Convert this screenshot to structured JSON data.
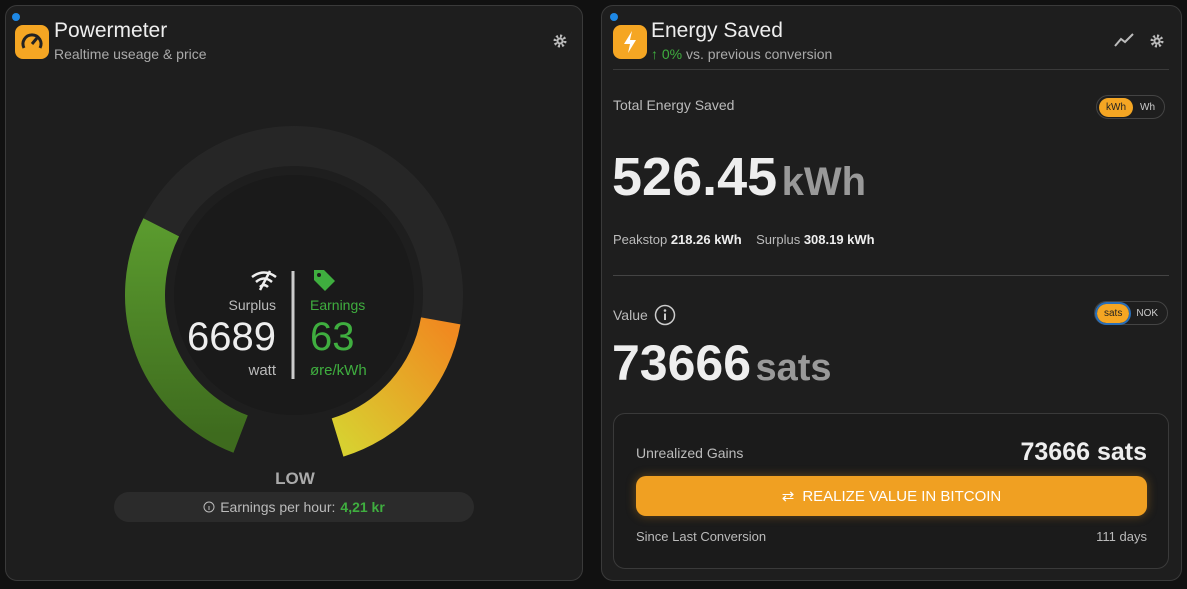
{
  "powermeter": {
    "title": "Powermeter",
    "subtitle": "Realtime useage & price",
    "surplus_label": "Surplus",
    "surplus_value": "6689",
    "surplus_unit": "watt",
    "earnings_label": "Earnings",
    "earnings_value": "63",
    "earnings_unit": "øre/kWh",
    "level": "LOW",
    "earnings_per_hour_label": "Earnings per hour:",
    "earnings_per_hour_value": "4,21 kr"
  },
  "energy_saved": {
    "title": "Energy Saved",
    "change": "0%",
    "change_label": "vs. previous conversion",
    "total_label": "Total Energy Saved",
    "unit_toggle": [
      "kWh",
      "Wh"
    ],
    "total_value": "526.45",
    "total_unit": "kWh",
    "peakstop_label": "Peakstop",
    "peakstop_value": "218.26 kWh",
    "surplus_label": "Surplus",
    "surplus_value": "308.19 kWh",
    "value_label": "Value",
    "currency_toggle": [
      "sats",
      "NOK"
    ],
    "value_amount": "73666",
    "value_unit": "sats",
    "unrealized_label": "Unrealized Gains",
    "unrealized_value": "73666 sats",
    "button": "REALIZE VALUE IN BITCOIN",
    "since_label": "Since Last Conversion",
    "since_value": "111 days"
  }
}
